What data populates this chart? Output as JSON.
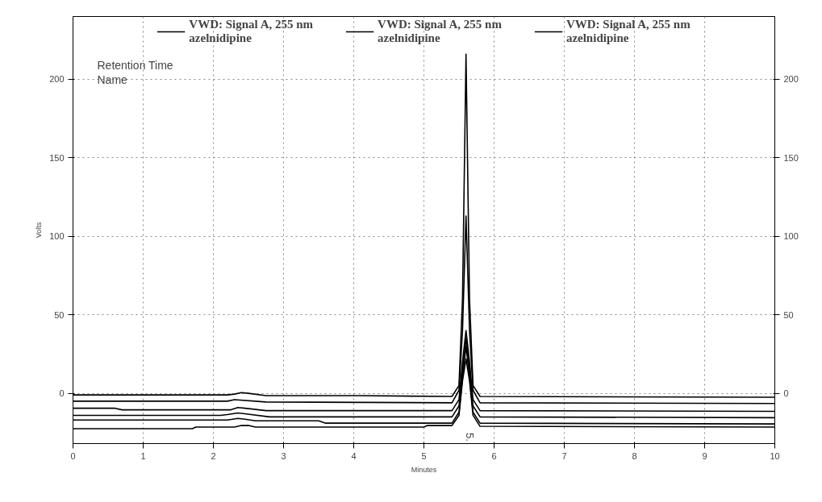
{
  "chart_data": {
    "type": "line",
    "xlabel": "Minutes",
    "ylabel": "Volts",
    "xlim": [
      0,
      10
    ],
    "xticks": [
      0,
      1,
      2,
      3,
      4,
      5,
      6,
      7,
      8,
      9,
      10
    ],
    "ylim": [
      -32,
      240
    ],
    "yticks": [
      0,
      50,
      100,
      150,
      200
    ],
    "y2lim": [
      -32,
      240
    ],
    "y2ticks": [
      0,
      50,
      100,
      150,
      200
    ],
    "grid": true,
    "legend": "top",
    "line_style": "solid",
    "annotations": [
      "Retention Time",
      "Name",
      "5."
    ],
    "series": [
      {
        "name": "VWD: Signal A, 255 nm\nazelnidipine",
        "color": "#000000",
        "x": [
          0,
          2.2,
          2.3,
          2.4,
          2.5,
          2.75,
          4.1,
          5.4,
          5.5,
          5.55,
          5.6,
          5.65,
          5.7,
          5.8,
          10
        ],
        "values": [
          -1,
          -1,
          -0.5,
          0.5,
          0,
          -1.5,
          -1.5,
          -2,
          5,
          60,
          216,
          60,
          5,
          -2,
          -2.5
        ]
      },
      {
        "name": "VWD: Signal A, 255 nm\nazelnidipine",
        "color": "#000000",
        "x": [
          0,
          2.2,
          2.3,
          2.75,
          5.4,
          5.5,
          5.55,
          5.6,
          5.65,
          5.7,
          5.8,
          10
        ],
        "values": [
          -5,
          -5,
          -4,
          -5.5,
          -6,
          2,
          40,
          113,
          40,
          2,
          -6,
          -6.5
        ]
      },
      {
        "name": "VWD: Signal A, 255 nm\nazelnidipine",
        "color": "#000000",
        "x": [
          0,
          0.6,
          0.7,
          2.25,
          2.35,
          2.45,
          2.75,
          5.4,
          5.5,
          5.55,
          5.6,
          5.65,
          5.7,
          5.8,
          10
        ],
        "values": [
          -9.5,
          -9.5,
          -10.5,
          -10.5,
          -9,
          -9.5,
          -11,
          -11,
          -4,
          20,
          40,
          20,
          -4,
          -11,
          -11.5
        ]
      },
      {
        "color": "#000000",
        "x": [
          0,
          2.1,
          2.2,
          2.35,
          2.45,
          2.8,
          5.4,
          5.5,
          5.55,
          5.6,
          5.65,
          5.7,
          5.8,
          10
        ],
        "values": [
          -14,
          -14,
          -13.5,
          -12.5,
          -13,
          -15,
          -15,
          -8,
          15,
          35,
          15,
          -8,
          -15,
          -15.5
        ]
      },
      {
        "color": "#000000",
        "x": [
          0,
          2.2,
          2.35,
          2.45,
          2.6,
          3.5,
          3.6,
          5.4,
          5.5,
          5.55,
          5.6,
          5.65,
          5.7,
          5.8,
          10
        ],
        "values": [
          -17,
          -17,
          -16,
          -16.5,
          -17.5,
          -17.5,
          -19,
          -19,
          -12,
          10,
          30,
          10,
          -12,
          -19,
          -19.5
        ]
      },
      {
        "color": "#000000",
        "x": [
          0,
          1.7,
          1.75,
          2.3,
          2.4,
          2.5,
          2.6,
          5.0,
          5.05,
          5.4,
          5.5,
          5.55,
          5.6,
          5.65,
          5.7,
          5.8,
          10
        ],
        "values": [
          -22.5,
          -22.5,
          -21.5,
          -21.5,
          -20.5,
          -20.5,
          -21.5,
          -21.5,
          -20.5,
          -20.5,
          -14,
          8,
          22,
          8,
          -14,
          -21,
          -21.5
        ]
      }
    ]
  }
}
